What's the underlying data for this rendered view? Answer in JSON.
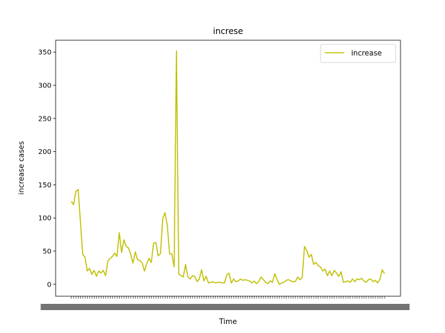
{
  "chart_data": {
    "type": "line",
    "title": "increse",
    "xlabel": "Time",
    "ylabel": "increase cases",
    "ylim": [
      -18,
      368
    ],
    "yticks": [
      0,
      50,
      100,
      150,
      200,
      250,
      300,
      350
    ],
    "grid": false,
    "legend_position": "top-right",
    "x_tick_labels_note": "x tick labels overlap and are illegible in the original",
    "series": [
      {
        "name": "increase",
        "color": "#bfbf00",
        "values": [
          125,
          120,
          140,
          143,
          95,
          45,
          41,
          20,
          24,
          15,
          21,
          12,
          20,
          17,
          21,
          13,
          35,
          39,
          42,
          47,
          42,
          78,
          48,
          67,
          57,
          55,
          45,
          32,
          49,
          37,
          36,
          32,
          20,
          31,
          39,
          33,
          62,
          63,
          43,
          46,
          99,
          108,
          89,
          46,
          46,
          26,
          352,
          16,
          13,
          11,
          30,
          11,
          8,
          13,
          12,
          4,
          8,
          22,
          5,
          12,
          2,
          3,
          4,
          2,
          3,
          3,
          2,
          2,
          14,
          17,
          2,
          8,
          4,
          5,
          8,
          6,
          7,
          6,
          5,
          2,
          5,
          1,
          4,
          11,
          7,
          3,
          1,
          5,
          3,
          16,
          7,
          0,
          2,
          3,
          6,
          7,
          5,
          4,
          4,
          11,
          7,
          10,
          57,
          51,
          41,
          45,
          30,
          33,
          28,
          26,
          20,
          23,
          13,
          20,
          13,
          21,
          17,
          12,
          19,
          3,
          4,
          5,
          3,
          8,
          4,
          8,
          7,
          9,
          5,
          3,
          7,
          8,
          4,
          6,
          2,
          8,
          22,
          16
        ]
      }
    ]
  }
}
